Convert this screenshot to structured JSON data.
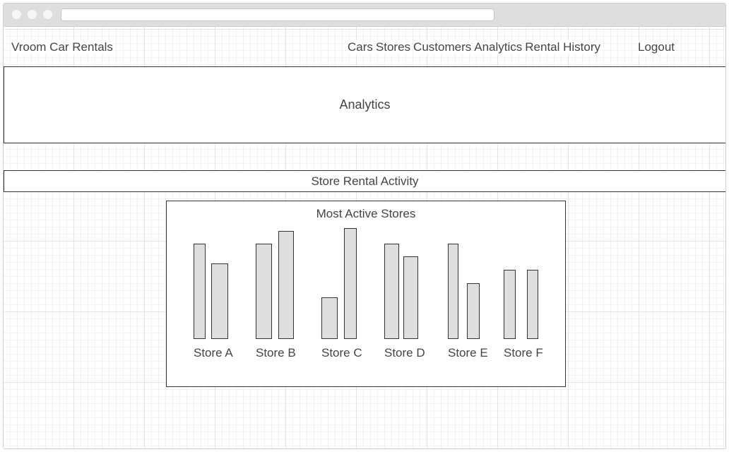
{
  "app": {
    "brand": "Vroom Car Rentals",
    "nav": [
      "Cars",
      "Stores",
      "Customers",
      "Analytics",
      "Rental History"
    ],
    "logout": "Logout"
  },
  "page": {
    "title": "Analytics",
    "section": "Store Rental Activity"
  },
  "chart_data": {
    "type": "bar",
    "title": "Most Active Stores",
    "categories": [
      "Store A",
      "Store B",
      "Store C",
      "Store D",
      "Store E",
      "Store F"
    ],
    "series": [
      {
        "values": [
          134,
          134,
          58,
          134,
          134,
          97
        ]
      },
      {
        "values": [
          106,
          152,
          156,
          116,
          78,
          97
        ]
      }
    ],
    "ylim": [
      0,
      160
    ],
    "xlabel": "",
    "ylabel": "",
    "grid": false
  }
}
